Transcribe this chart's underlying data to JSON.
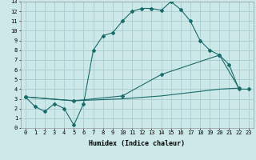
{
  "bg_color": "#cce8e8",
  "grid_color": "#aacccc",
  "line_color": "#1a6b6b",
  "xlabel": "Humidex (Indice chaleur)",
  "xlim": [
    -0.5,
    23.5
  ],
  "ylim": [
    0,
    13
  ],
  "xticks": [
    0,
    1,
    2,
    3,
    4,
    5,
    6,
    7,
    8,
    9,
    10,
    11,
    12,
    13,
    14,
    15,
    16,
    17,
    18,
    19,
    20,
    21,
    22,
    23
  ],
  "yticks": [
    0,
    1,
    2,
    3,
    4,
    5,
    6,
    7,
    8,
    9,
    10,
    11,
    12,
    13
  ],
  "line1_x": [
    0,
    1,
    2,
    3,
    4,
    5,
    6,
    7,
    8,
    9,
    10,
    11,
    12,
    13,
    14,
    15,
    16,
    17,
    18,
    19,
    20,
    21,
    22,
    23
  ],
  "line1_y": [
    3.2,
    2.2,
    1.7,
    2.5,
    2.0,
    0.3,
    2.5,
    8.0,
    9.5,
    9.8,
    11.0,
    12.0,
    12.3,
    12.3,
    12.1,
    13.0,
    12.2,
    11.0,
    9.0,
    8.0,
    7.5,
    6.5,
    4.0,
    4.0
  ],
  "line2_x": [
    0,
    5,
    10,
    14,
    20,
    22
  ],
  "line2_y": [
    3.2,
    2.8,
    3.3,
    5.5,
    7.5,
    4.1
  ],
  "line3_x": [
    0,
    5,
    10,
    14,
    20,
    22
  ],
  "line3_y": [
    3.2,
    2.8,
    3.0,
    3.3,
    4.0,
    4.1
  ],
  "tick_fontsize": 5.0,
  "label_fontsize": 6.0
}
